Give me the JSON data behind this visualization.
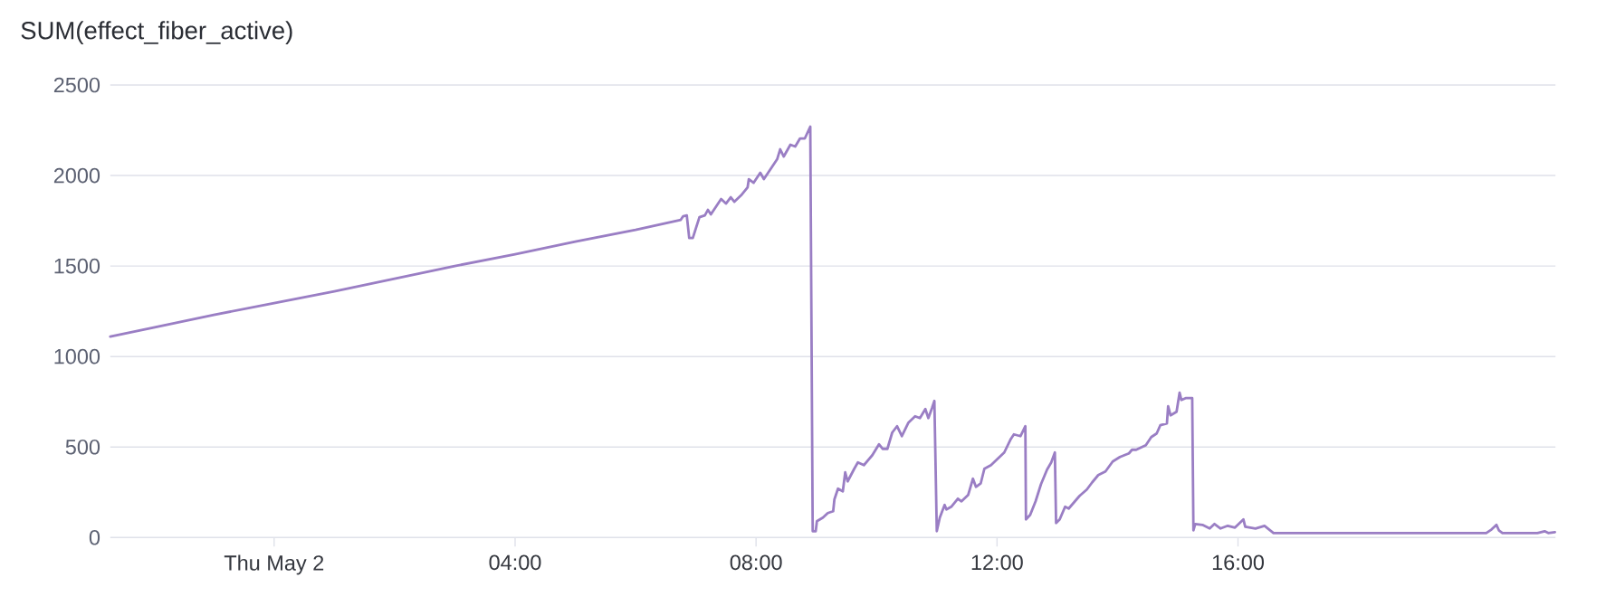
{
  "chart_data": {
    "type": "line",
    "title": "SUM(effect_fiber_active)",
    "x": [
      -2.72,
      -2,
      -1,
      0,
      1,
      2,
      3,
      4,
      5,
      6,
      6.75,
      6.79,
      6.85,
      6.89,
      6.95,
      7.06,
      7.15,
      7.2,
      7.25,
      7.42,
      7.5,
      7.58,
      7.64,
      7.75,
      7.86,
      7.88,
      7.96,
      8.07,
      8.13,
      8.24,
      8.35,
      8.4,
      8.46,
      8.57,
      8.65,
      8.73,
      8.81,
      8.9,
      8.94,
      8.99,
      9.01,
      9.11,
      9.19,
      9.28,
      9.3,
      9.36,
      9.44,
      9.48,
      9.52,
      9.63,
      9.69,
      9.79,
      9.93,
      10.04,
      10.1,
      10.18,
      10.26,
      10.34,
      10.42,
      10.53,
      10.64,
      10.72,
      10.81,
      10.86,
      10.92,
      10.96,
      11.0,
      11.05,
      11.13,
      11.16,
      11.24,
      11.35,
      11.41,
      11.52,
      11.6,
      11.65,
      11.73,
      11.79,
      11.9,
      12.01,
      12.12,
      12.23,
      12.28,
      12.39,
      12.47,
      12.48,
      12.55,
      12.58,
      12.64,
      12.73,
      12.83,
      12.9,
      12.96,
      12.98,
      13.04,
      13.13,
      13.19,
      13.37,
      13.49,
      13.58,
      13.68,
      13.8,
      13.92,
      14.04,
      14.19,
      14.24,
      14.31,
      14.47,
      14.56,
      14.65,
      14.71,
      14.82,
      14.84,
      14.88,
      14.98,
      15.03,
      15.06,
      15.13,
      15.24,
      15.26,
      15.29,
      15.41,
      15.53,
      15.61,
      15.71,
      15.83,
      15.95,
      16.09,
      16.12,
      16.29,
      16.44,
      16.59,
      16.84,
      17.32,
      17.75,
      18.35,
      18.96,
      19.57,
      20.12,
      20.21,
      20.29,
      20.33,
      20.39,
      20.66,
      20.97,
      21.09,
      21.15,
      21.26
    ],
    "series": [
      {
        "color": "#9a7ec4",
        "values": [
          1110,
          1160,
          1230,
          1295,
          1360,
          1430,
          1500,
          1565,
          1635,
          1700,
          1755,
          1775,
          1780,
          1655,
          1655,
          1770,
          1780,
          1810,
          1785,
          1870,
          1845,
          1880,
          1855,
          1890,
          1935,
          1980,
          1960,
          2015,
          1980,
          2035,
          2090,
          2145,
          2105,
          2170,
          2160,
          2205,
          2205,
          2270,
          35,
          35,
          90,
          110,
          135,
          145,
          210,
          270,
          255,
          360,
          310,
          380,
          415,
          400,
          455,
          515,
          490,
          490,
          580,
          615,
          560,
          635,
          670,
          660,
          710,
          660,
          715,
          755,
          35,
          110,
          180,
          155,
          170,
          215,
          200,
          235,
          325,
          280,
          300,
          380,
          400,
          435,
          470,
          545,
          570,
          560,
          615,
          100,
          125,
          150,
          200,
          295,
          375,
          415,
          470,
          80,
          100,
          170,
          160,
          230,
          265,
          305,
          345,
          365,
          420,
          445,
          465,
          485,
          485,
          510,
          555,
          575,
          620,
          630,
          725,
          675,
          695,
          800,
          760,
          770,
          770,
          40,
          75,
          70,
          50,
          75,
          50,
          65,
          55,
          100,
          60,
          50,
          65,
          25,
          25,
          25,
          25,
          25,
          25,
          25,
          25,
          45,
          70,
          40,
          25,
          25,
          25,
          35,
          25,
          30
        ]
      }
    ],
    "xlim": [
      -2.72,
      21.27
    ],
    "ylim": [
      0,
      2500
    ],
    "xticks": [
      {
        "value": 0,
        "label": "Thu May 2"
      },
      {
        "value": 4,
        "label": "04:00"
      },
      {
        "value": 8,
        "label": "08:00"
      },
      {
        "value": 12,
        "label": "12:00"
      },
      {
        "value": 16,
        "label": "16:00"
      }
    ],
    "yticks": [
      0,
      500,
      1000,
      1500,
      2000,
      2500
    ],
    "grid": "y"
  }
}
